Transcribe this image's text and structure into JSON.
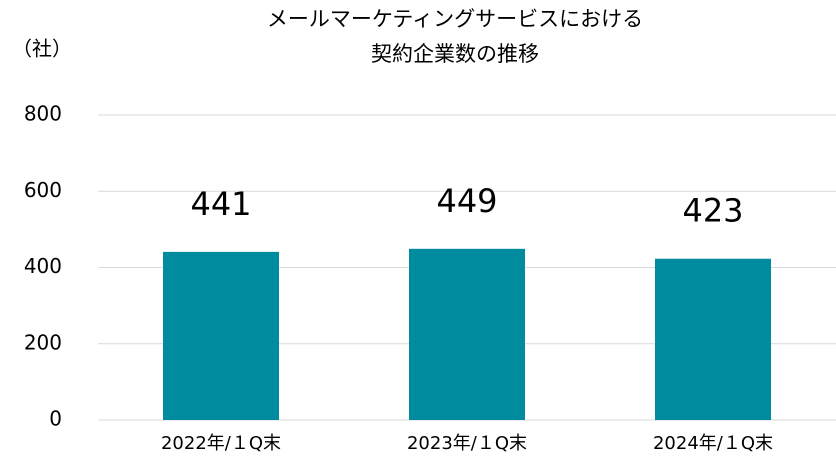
{
  "chart_data": {
    "type": "bar",
    "title": [
      "メールマーケティングサービスにおける",
      "契約企業数の推移"
    ],
    "y_axis_label": "（社）",
    "categories": [
      "2022年/１Q末",
      "2023年/１Q末",
      "2024年/１Q末"
    ],
    "values": [
      441,
      449,
      423
    ],
    "color": "#008c9e",
    "ylim": [
      0,
      800
    ],
    "yticks": [
      0,
      200,
      400,
      600,
      800
    ],
    "grid": true,
    "data_labels": true
  }
}
